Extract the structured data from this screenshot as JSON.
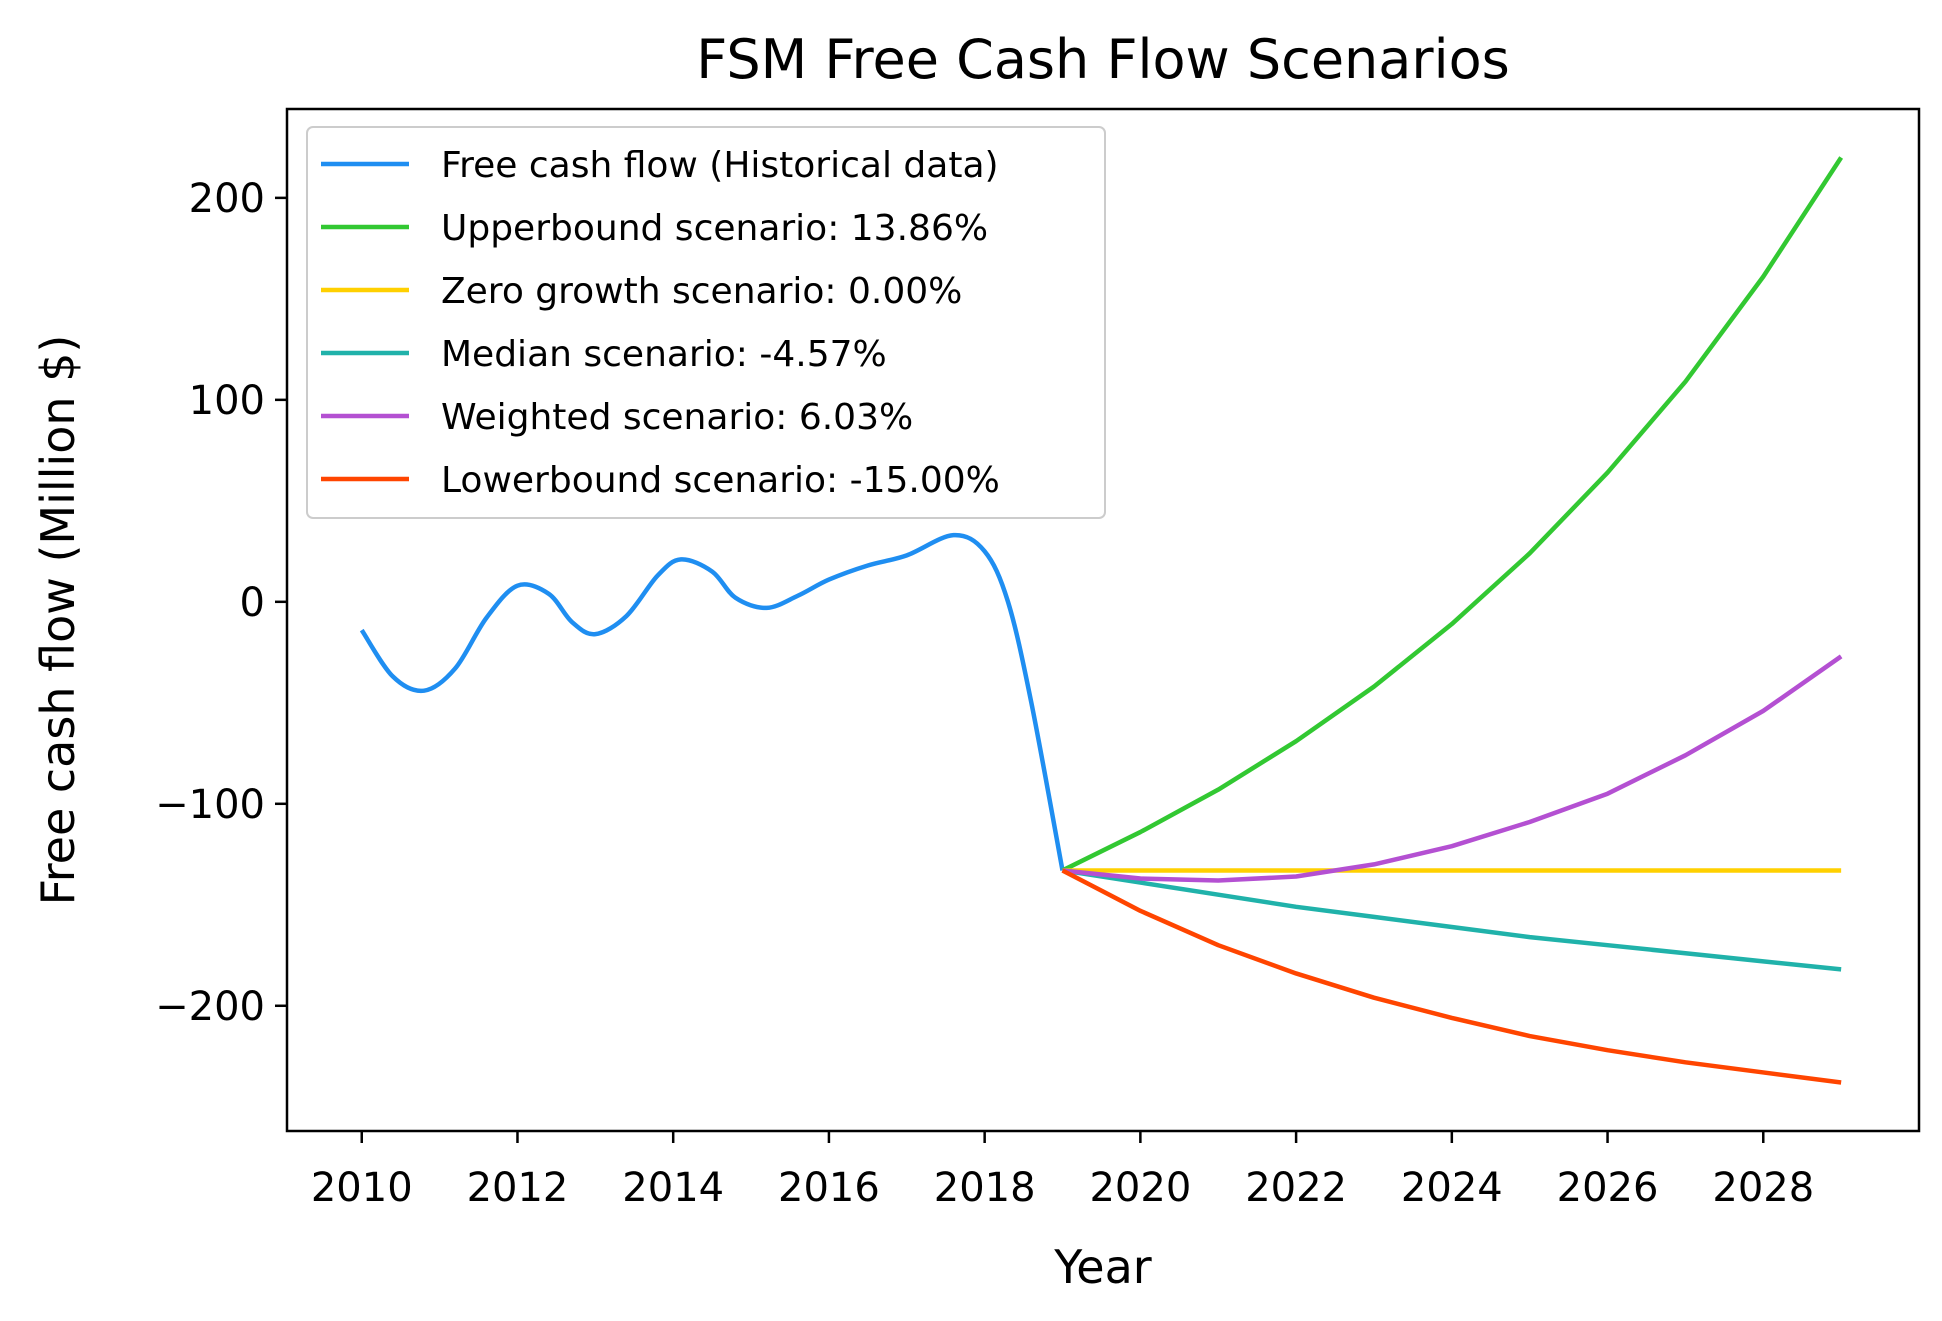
{
  "chart_data": {
    "type": "line",
    "title": "FSM Free Cash Flow Scenarios",
    "xlabel": "Year",
    "ylabel": "Free cash flow (Million $)",
    "xlim": [
      2009.04,
      2030.0
    ],
    "ylim": [
      -262,
      244
    ],
    "x_ticks": [
      2010,
      2012,
      2014,
      2016,
      2018,
      2020,
      2022,
      2024,
      2026,
      2028
    ],
    "y_ticks": [
      -200,
      -100,
      0,
      100,
      200
    ],
    "y_tick_labels": [
      "−200",
      "−100",
      "0",
      "100",
      "200"
    ],
    "grid": false,
    "legend_position": "upper-left",
    "series": [
      {
        "name": "Free cash flow (Historical data)",
        "color": "#1f8ef1",
        "smooth": true,
        "x": [
          2010,
          2010.4,
          2010.8,
          2011.2,
          2011.6,
          2012.0,
          2012.4,
          2012.7,
          2013.0,
          2013.4,
          2013.8,
          2014.1,
          2014.5,
          2014.8,
          2015.2,
          2015.6,
          2016.0,
          2016.5,
          2017.0,
          2017.6,
          2018.0,
          2018.3,
          2018.6,
          2019.0
        ],
        "y": [
          -14,
          -37,
          -44,
          -33,
          -8,
          8,
          4,
          -10,
          -16,
          -7,
          13,
          21,
          15,
          2,
          -3,
          3,
          11,
          18,
          23,
          33,
          25,
          0,
          -50,
          -133
        ]
      },
      {
        "name": "Upperbound scenario: 13.86%",
        "color": "#32c832",
        "x": [
          2019,
          2020,
          2021,
          2022,
          2023,
          2024,
          2025,
          2026,
          2027,
          2028,
          2029
        ],
        "y": [
          -133,
          -114,
          -93,
          -69,
          -42,
          -11,
          24,
          64,
          109,
          161,
          220
        ]
      },
      {
        "name": "Zero growth scenario: 0.00%",
        "color": "#ffd000",
        "x": [
          2019,
          2020,
          2021,
          2022,
          2023,
          2024,
          2025,
          2026,
          2027,
          2028,
          2029
        ],
        "y": [
          -133,
          -133,
          -133,
          -133,
          -133,
          -133,
          -133,
          -133,
          -133,
          -133,
          -133
        ]
      },
      {
        "name": "Median scenario: -4.57%",
        "color": "#20b2aa",
        "x": [
          2019,
          2020,
          2021,
          2022,
          2023,
          2024,
          2025,
          2026,
          2027,
          2028,
          2029
        ],
        "y": [
          -133,
          -139,
          -145,
          -151,
          -156,
          -161,
          -166,
          -170,
          -174,
          -178,
          -182
        ]
      },
      {
        "name": "Weighted scenario: 6.03%",
        "color": "#b450d2",
        "x": [
          2019,
          2020,
          2021,
          2022,
          2023,
          2024,
          2025,
          2026,
          2027,
          2028,
          2029
        ],
        "y": [
          -133,
          -137,
          -138,
          -136,
          -130,
          -121,
          -109,
          -95,
          -76,
          -54,
          -27
        ]
      },
      {
        "name": "Lowerbound scenario: -15.00%",
        "color": "#ff4500",
        "x": [
          2019,
          2020,
          2021,
          2022,
          2023,
          2024,
          2025,
          2026,
          2027,
          2028,
          2029
        ],
        "y": [
          -133,
          -153,
          -170,
          -184,
          -196,
          -206,
          -215,
          -222,
          -228,
          -233,
          -238
        ]
      }
    ]
  }
}
